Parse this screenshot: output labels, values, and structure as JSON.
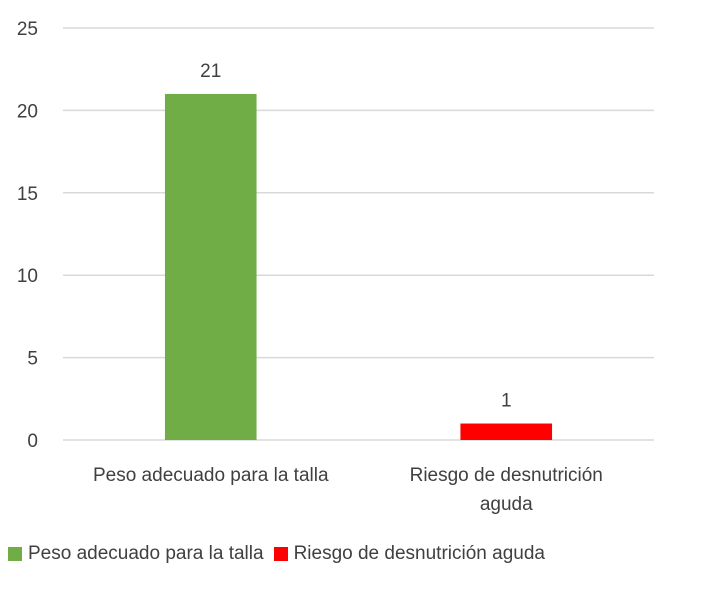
{
  "chart_data": {
    "type": "bar",
    "categories": [
      "Peso adecuado para la talla",
      "Riesgo de desnutrición aguda"
    ],
    "category_label_lines": [
      [
        "Peso adecuado para la talla"
      ],
      [
        "Riesgo de desnutrición",
        "aguda"
      ]
    ],
    "values": [
      21,
      1
    ],
    "data_labels": [
      "21",
      "1"
    ],
    "colors": [
      "#70ad47",
      "#ff0000"
    ],
    "ylim": [
      0,
      25
    ],
    "yticks": [
      0,
      5,
      10,
      15,
      20,
      25
    ],
    "grid": true,
    "legend_position": "bottom",
    "legend": [
      {
        "label": "Peso adecuado para la talla",
        "color": "#70ad47"
      },
      {
        "label": "Riesgo de desnutrición aguda",
        "color": "#ff0000"
      }
    ],
    "gridline_color": "#d9d9d9"
  }
}
